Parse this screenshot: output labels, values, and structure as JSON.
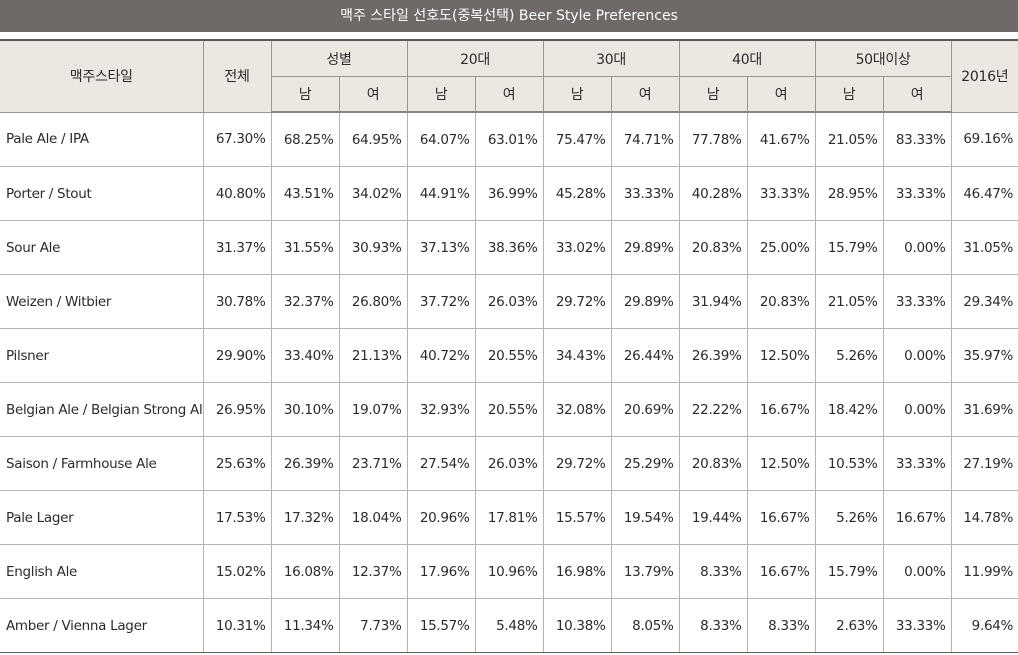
{
  "title": "맥주 스타일 선호도(중복선택)  Beer Style Preferences",
  "header": {
    "style": "맥주스타일",
    "total": "전체",
    "gender": "성별",
    "age20": "20대",
    "age30": "30대",
    "age40": "40대",
    "age50": "50대이상",
    "y2016": "2016년",
    "male": "남",
    "female": "여"
  },
  "rows": [
    {
      "style": "Pale Ale / IPA",
      "values": [
        "67.30%",
        "68.25%",
        "64.95%",
        "64.07%",
        "63.01%",
        "75.47%",
        "74.71%",
        "77.78%",
        "41.67%",
        "21.05%",
        "83.33%",
        "69.16%"
      ]
    },
    {
      "style": "Porter / Stout",
      "values": [
        "40.80%",
        "43.51%",
        "34.02%",
        "44.91%",
        "36.99%",
        "45.28%",
        "33.33%",
        "40.28%",
        "33.33%",
        "28.95%",
        "33.33%",
        "46.47%"
      ]
    },
    {
      "style": "Sour Ale",
      "values": [
        "31.37%",
        "31.55%",
        "30.93%",
        "37.13%",
        "38.36%",
        "33.02%",
        "29.89%",
        "20.83%",
        "25.00%",
        "15.79%",
        "0.00%",
        "31.05%"
      ]
    },
    {
      "style": "Weizen / Witbier",
      "values": [
        "30.78%",
        "32.37%",
        "26.80%",
        "37.72%",
        "26.03%",
        "29.72%",
        "29.89%",
        "31.94%",
        "20.83%",
        "21.05%",
        "33.33%",
        "29.34%"
      ]
    },
    {
      "style": "Pilsner",
      "values": [
        "29.90%",
        "33.40%",
        "21.13%",
        "40.72%",
        "20.55%",
        "34.43%",
        "26.44%",
        "26.39%",
        "12.50%",
        "5.26%",
        "0.00%",
        "35.97%"
      ]
    },
    {
      "style": "Belgian Ale / Belgian Strong Ale",
      "values": [
        "26.95%",
        "30.10%",
        "19.07%",
        "32.93%",
        "20.55%",
        "32.08%",
        "20.69%",
        "22.22%",
        "16.67%",
        "18.42%",
        "0.00%",
        "31.69%"
      ]
    },
    {
      "style": "Saison / Farmhouse Ale",
      "values": [
        "25.63%",
        "26.39%",
        "23.71%",
        "27.54%",
        "26.03%",
        "29.72%",
        "25.29%",
        "20.83%",
        "12.50%",
        "10.53%",
        "33.33%",
        "27.19%"
      ]
    },
    {
      "style": "Pale Lager",
      "values": [
        "17.53%",
        "17.32%",
        "18.04%",
        "20.96%",
        "17.81%",
        "15.57%",
        "19.54%",
        "19.44%",
        "16.67%",
        "5.26%",
        "16.67%",
        "14.78%"
      ]
    },
    {
      "style": "English Ale",
      "values": [
        "15.02%",
        "16.08%",
        "12.37%",
        "17.96%",
        "10.96%",
        "16.98%",
        "13.79%",
        "8.33%",
        "16.67%",
        "15.79%",
        "0.00%",
        "11.99%"
      ]
    },
    {
      "style": "Amber / Vienna Lager",
      "values": [
        "10.31%",
        "11.34%",
        "7.73%",
        "15.57%",
        "5.48%",
        "10.38%",
        "8.05%",
        "8.33%",
        "8.33%",
        "2.63%",
        "33.33%",
        "9.64%"
      ]
    }
  ]
}
